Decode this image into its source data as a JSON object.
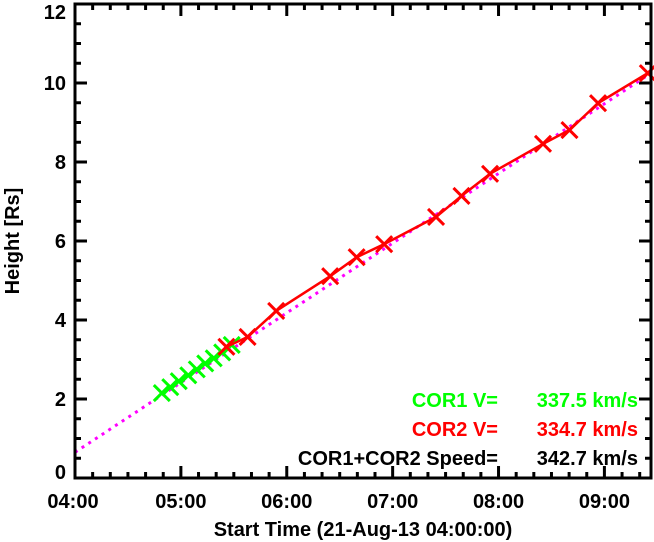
{
  "chart_data": {
    "type": "scatter",
    "title": "",
    "xlabel": "Start Time (21-Aug-13 04:00:00)",
    "ylabel": "Height [Rs]",
    "xlim_hours_after_start": [
      0,
      5.44
    ],
    "ylim": [
      0,
      12
    ],
    "x_ticks": [
      {
        "hours": 0,
        "label": "04:00"
      },
      {
        "hours": 1,
        "label": "05:00"
      },
      {
        "hours": 2,
        "label": "06:00"
      },
      {
        "hours": 3,
        "label": "07:00"
      },
      {
        "hours": 4,
        "label": "08:00"
      },
      {
        "hours": 5,
        "label": "09:00"
      }
    ],
    "y_ticks": [
      0,
      2,
      4,
      6,
      8,
      10,
      12
    ],
    "series": [
      {
        "name": "COR1",
        "color": "#00ff00",
        "marker": "x",
        "points": [
          [
            0.82,
            2.15
          ],
          [
            0.9,
            2.3
          ],
          [
            0.98,
            2.45
          ],
          [
            1.07,
            2.6
          ],
          [
            1.15,
            2.75
          ],
          [
            1.23,
            2.9
          ],
          [
            1.31,
            3.03
          ],
          [
            1.39,
            3.18
          ],
          [
            1.48,
            3.37
          ]
        ]
      },
      {
        "name": "COR2",
        "color": "#ff0000",
        "marker": "x",
        "points": [
          [
            1.43,
            3.32
          ],
          [
            1.63,
            3.57
          ],
          [
            1.9,
            4.23
          ],
          [
            2.41,
            5.11
          ],
          [
            2.66,
            5.59
          ],
          [
            2.92,
            5.92
          ],
          [
            3.41,
            6.61
          ],
          [
            3.65,
            7.14
          ],
          [
            3.92,
            7.7
          ],
          [
            4.42,
            8.46
          ],
          [
            4.67,
            8.81
          ],
          [
            4.94,
            9.49
          ],
          [
            5.41,
            10.25
          ]
        ]
      },
      {
        "name": "COR1+COR2 fit",
        "color": "#ff00ff",
        "style": "dotted",
        "intercept": 0.65,
        "slope_per_hour": 1.765
      }
    ],
    "annotations": [
      {
        "label": "COR1 V=",
        "value": "337.5 km/s",
        "color": "#00ff00"
      },
      {
        "label": "COR2 V=",
        "value": "334.7 km/s",
        "color": "#ff0000"
      },
      {
        "label": "COR1+COR2 Speed=",
        "value": "342.7 km/s",
        "color": "#000000"
      }
    ]
  }
}
